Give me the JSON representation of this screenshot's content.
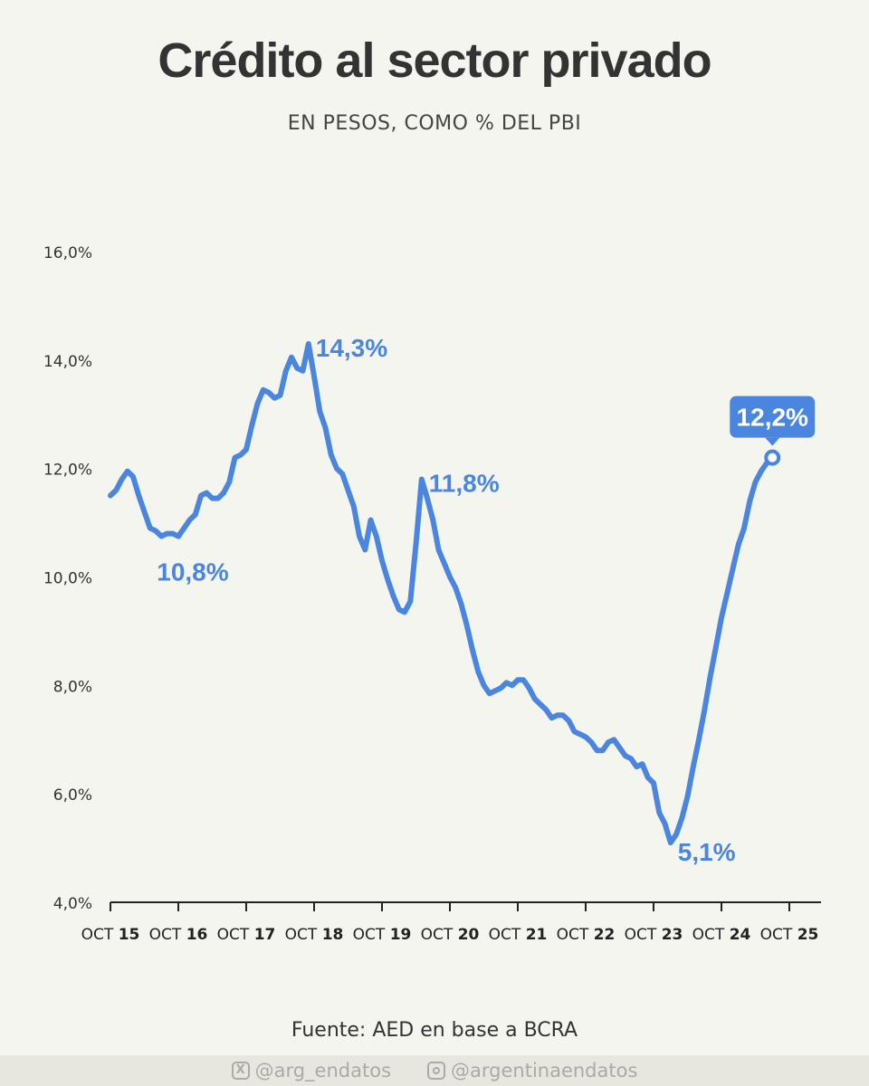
{
  "title": "Crédito al sector privado",
  "subtitle": "EN PESOS, COMO % DEL PBI",
  "source": "Fuente: AED en base a BCRA",
  "footer": {
    "x_handle": "@arg_endatos",
    "ig_handle": "@argentinaendatos"
  },
  "colors": {
    "line": "#4a86e0",
    "text": "#333333",
    "background": "#f5f5ef"
  },
  "chart_data": {
    "type": "line",
    "ylim": [
      4.0,
      16.0
    ],
    "y_ticks": [
      "4,0%",
      "6,0%",
      "8,0%",
      "10,0%",
      "12,0%",
      "14,0%",
      "16,0%"
    ],
    "x_ticks": [
      {
        "pre": "OCT",
        "num": "15"
      },
      {
        "pre": "OCT",
        "num": "16"
      },
      {
        "pre": "OCT",
        "num": "17"
      },
      {
        "pre": "OCT",
        "num": "18"
      },
      {
        "pre": "OCT",
        "num": "19"
      },
      {
        "pre": "OCT",
        "num": "20"
      },
      {
        "pre": "OCT",
        "num": "21"
      },
      {
        "pre": "OCT",
        "num": "22"
      },
      {
        "pre": "OCT",
        "num": "23"
      },
      {
        "pre": "OCT",
        "num": "24"
      },
      {
        "pre": "OCT",
        "num": "25"
      }
    ],
    "xlim": [
      "2015-10",
      "2025-10"
    ],
    "series": [
      {
        "points": [
          [
            "2015-10",
            11.5
          ],
          [
            "2015-11",
            11.6
          ],
          [
            "2015-12",
            11.8
          ],
          [
            "2016-01",
            11.95
          ],
          [
            "2016-02",
            11.85
          ],
          [
            "2016-03",
            11.5
          ],
          [
            "2016-04",
            11.2
          ],
          [
            "2016-05",
            10.9
          ],
          [
            "2016-06",
            10.85
          ],
          [
            "2016-07",
            10.75
          ],
          [
            "2016-08",
            10.8
          ],
          [
            "2016-09",
            10.8
          ],
          [
            "2016-10",
            10.75
          ],
          [
            "2016-11",
            10.9
          ],
          [
            "2016-12",
            11.05
          ],
          [
            "2017-01",
            11.15
          ],
          [
            "2017-02",
            11.5
          ],
          [
            "2017-03",
            11.55
          ],
          [
            "2017-04",
            11.45
          ],
          [
            "2017-05",
            11.45
          ],
          [
            "2017-06",
            11.55
          ],
          [
            "2017-07",
            11.75
          ],
          [
            "2017-08",
            12.2
          ],
          [
            "2017-09",
            12.25
          ],
          [
            "2017-10",
            12.35
          ],
          [
            "2017-11",
            12.8
          ],
          [
            "2017-12",
            13.2
          ],
          [
            "2018-01",
            13.45
          ],
          [
            "2018-02",
            13.4
          ],
          [
            "2018-03",
            13.3
          ],
          [
            "2018-04",
            13.35
          ],
          [
            "2018-05",
            13.8
          ],
          [
            "2018-06",
            14.05
          ],
          [
            "2018-07",
            13.85
          ],
          [
            "2018-08",
            13.8
          ],
          [
            "2018-09",
            14.3
          ],
          [
            "2018-10",
            13.7
          ],
          [
            "2018-11",
            13.05
          ],
          [
            "2018-12",
            12.75
          ],
          [
            "2019-01",
            12.25
          ],
          [
            "2019-02",
            12.0
          ],
          [
            "2019-03",
            11.9
          ],
          [
            "2019-04",
            11.6
          ],
          [
            "2019-05",
            11.3
          ],
          [
            "2019-06",
            10.75
          ],
          [
            "2019-07",
            10.5
          ],
          [
            "2019-08",
            11.05
          ],
          [
            "2019-09",
            10.75
          ],
          [
            "2019-10",
            10.3
          ],
          [
            "2019-11",
            9.95
          ],
          [
            "2019-12",
            9.65
          ],
          [
            "2020-01",
            9.4
          ],
          [
            "2020-02",
            9.35
          ],
          [
            "2020-03",
            9.55
          ],
          [
            "2020-04",
            10.6
          ],
          [
            "2020-05",
            11.8
          ],
          [
            "2020-06",
            11.45
          ],
          [
            "2020-07",
            11.05
          ],
          [
            "2020-08",
            10.5
          ],
          [
            "2020-09",
            10.25
          ],
          [
            "2020-10",
            10.0
          ],
          [
            "2020-11",
            9.8
          ],
          [
            "2020-12",
            9.5
          ],
          [
            "2021-01",
            9.1
          ],
          [
            "2021-02",
            8.65
          ],
          [
            "2021-03",
            8.25
          ],
          [
            "2021-04",
            8.0
          ],
          [
            "2021-05",
            7.85
          ],
          [
            "2021-06",
            7.9
          ],
          [
            "2021-07",
            7.95
          ],
          [
            "2021-08",
            8.05
          ],
          [
            "2021-09",
            8.0
          ],
          [
            "2021-10",
            8.1
          ],
          [
            "2021-11",
            8.1
          ],
          [
            "2021-12",
            7.95
          ],
          [
            "2022-01",
            7.75
          ],
          [
            "2022-02",
            7.65
          ],
          [
            "2022-03",
            7.55
          ],
          [
            "2022-04",
            7.4
          ],
          [
            "2022-05",
            7.45
          ],
          [
            "2022-06",
            7.45
          ],
          [
            "2022-07",
            7.35
          ],
          [
            "2022-08",
            7.15
          ],
          [
            "2022-09",
            7.1
          ],
          [
            "2022-10",
            7.05
          ],
          [
            "2022-11",
            6.95
          ],
          [
            "2022-12",
            6.8
          ],
          [
            "2023-01",
            6.8
          ],
          [
            "2023-02",
            6.95
          ],
          [
            "2023-03",
            7.0
          ],
          [
            "2023-04",
            6.85
          ],
          [
            "2023-05",
            6.7
          ],
          [
            "2023-06",
            6.65
          ],
          [
            "2023-07",
            6.5
          ],
          [
            "2023-08",
            6.55
          ],
          [
            "2023-09",
            6.3
          ],
          [
            "2023-10",
            6.2
          ],
          [
            "2023-11",
            5.65
          ],
          [
            "2023-12",
            5.45
          ],
          [
            "2024-01",
            5.1
          ],
          [
            "2024-02",
            5.25
          ],
          [
            "2024-03",
            5.55
          ],
          [
            "2024-04",
            5.95
          ],
          [
            "2024-05",
            6.5
          ],
          [
            "2024-06",
            7.0
          ],
          [
            "2024-07",
            7.55
          ],
          [
            "2024-08",
            8.15
          ],
          [
            "2024-09",
            8.7
          ],
          [
            "2024-10",
            9.25
          ],
          [
            "2024-11",
            9.7
          ],
          [
            "2024-12",
            10.15
          ],
          [
            "2025-01",
            10.6
          ],
          [
            "2025-02",
            10.9
          ],
          [
            "2025-03",
            11.4
          ],
          [
            "2025-04",
            11.75
          ],
          [
            "2025-05",
            11.95
          ],
          [
            "2025-06",
            12.1
          ],
          [
            "2025-07",
            12.2
          ]
        ]
      }
    ],
    "annotations": [
      {
        "label": "10,8%",
        "x": "2016-07",
        "y": 10.8,
        "style": "plain",
        "pos": "below"
      },
      {
        "label": "14,3%",
        "x": "2018-09",
        "y": 14.3,
        "style": "plain",
        "pos": "right"
      },
      {
        "label": "11,8%",
        "x": "2020-05",
        "y": 11.8,
        "style": "plain",
        "pos": "right"
      },
      {
        "label": "5,1%",
        "x": "2024-01",
        "y": 5.1,
        "style": "plain",
        "pos": "below-right"
      },
      {
        "label": "12,2%",
        "x": "2025-07",
        "y": 12.2,
        "style": "badge",
        "pos": "above"
      }
    ]
  }
}
